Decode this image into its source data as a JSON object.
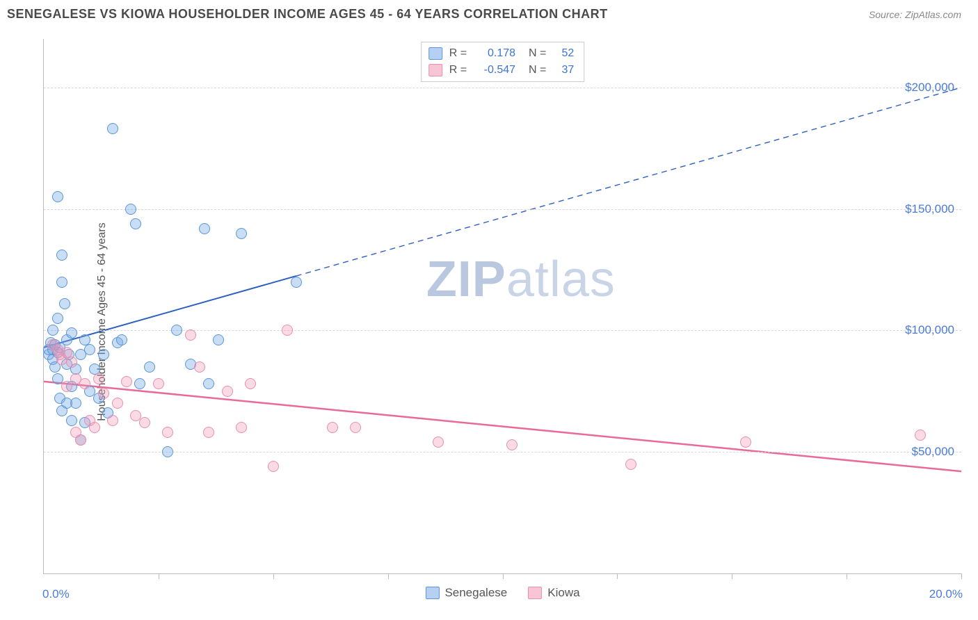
{
  "header": {
    "title": "SENEGALESE VS KIOWA HOUSEHOLDER INCOME AGES 45 - 64 YEARS CORRELATION CHART",
    "source": "Source: ZipAtlas.com"
  },
  "watermark": {
    "bold": "ZIP",
    "light": "atlas"
  },
  "chart": {
    "type": "scatter",
    "y_axis_label": "Householder Income Ages 45 - 64 years",
    "xlim": [
      0,
      20
    ],
    "ylim": [
      0,
      220000
    ],
    "x_ticks": [
      0,
      2.5,
      5,
      7.5,
      10,
      12.5,
      15,
      17.5,
      20
    ],
    "x_tick_labels_shown": {
      "left": "0.0%",
      "right": "20.0%"
    },
    "y_gridlines": [
      50000,
      100000,
      150000,
      200000
    ],
    "y_tick_labels": [
      "$50,000",
      "$100,000",
      "$150,000",
      "$200,000"
    ],
    "series": [
      {
        "name": "Senegalese",
        "class": "s1",
        "color_fill": "rgba(120,170,230,0.4)",
        "color_stroke": "#5a96d8",
        "r_value": "0.178",
        "n_value": "52",
        "trend": {
          "x1": 0,
          "y1": 93000,
          "x2": 20,
          "y2": 200000,
          "solid_until_x": 5.5,
          "color": "#2c5fc0",
          "width": 2
        },
        "points": [
          [
            0.1,
            90000
          ],
          [
            0.1,
            92000
          ],
          [
            0.15,
            95000
          ],
          [
            0.2,
            88000
          ],
          [
            0.2,
            100000
          ],
          [
            0.25,
            85000
          ],
          [
            0.3,
            105000
          ],
          [
            0.3,
            80000
          ],
          [
            0.3,
            155000
          ],
          [
            0.35,
            72000
          ],
          [
            0.4,
            131000
          ],
          [
            0.4,
            120000
          ],
          [
            0.45,
            111000
          ],
          [
            0.5,
            96000
          ],
          [
            0.5,
            86000
          ],
          [
            0.55,
            90000
          ],
          [
            0.6,
            99000
          ],
          [
            0.6,
            77000
          ],
          [
            0.7,
            84000
          ],
          [
            0.7,
            70000
          ],
          [
            0.8,
            55000
          ],
          [
            0.8,
            90000
          ],
          [
            0.9,
            96000
          ],
          [
            0.9,
            62000
          ],
          [
            1.0,
            75000
          ],
          [
            1.0,
            92000
          ],
          [
            1.1,
            84000
          ],
          [
            1.2,
            72000
          ],
          [
            1.3,
            90000
          ],
          [
            1.4,
            66000
          ],
          [
            1.5,
            183000
          ],
          [
            1.6,
            95000
          ],
          [
            1.7,
            96000
          ],
          [
            1.9,
            150000
          ],
          [
            2.0,
            144000
          ],
          [
            2.1,
            78000
          ],
          [
            2.3,
            85000
          ],
          [
            2.7,
            50000
          ],
          [
            2.9,
            100000
          ],
          [
            3.2,
            86000
          ],
          [
            3.5,
            142000
          ],
          [
            3.6,
            78000
          ],
          [
            3.8,
            96000
          ],
          [
            4.3,
            140000
          ],
          [
            5.5,
            120000
          ],
          [
            0.4,
            67000
          ],
          [
            0.5,
            70000
          ],
          [
            0.6,
            63000
          ],
          [
            0.2,
            92000
          ],
          [
            0.25,
            94000
          ],
          [
            0.3,
            91000
          ],
          [
            0.35,
            93000
          ]
        ]
      },
      {
        "name": "Kiowa",
        "class": "s2",
        "color_fill": "rgba(240,150,180,0.35)",
        "color_stroke": "#e78fae",
        "r_value": "-0.547",
        "n_value": "37",
        "trend": {
          "x1": 0,
          "y1": 79000,
          "x2": 20,
          "y2": 42000,
          "solid_until_x": 20,
          "color": "#e86a99",
          "width": 2.5
        },
        "points": [
          [
            0.2,
            94000
          ],
          [
            0.3,
            92000
          ],
          [
            0.35,
            90000
          ],
          [
            0.4,
            88000
          ],
          [
            0.5,
            91000
          ],
          [
            0.5,
            77000
          ],
          [
            0.6,
            87000
          ],
          [
            0.7,
            80000
          ],
          [
            0.7,
            58000
          ],
          [
            0.8,
            55000
          ],
          [
            0.9,
            78000
          ],
          [
            1.0,
            63000
          ],
          [
            1.2,
            80000
          ],
          [
            1.3,
            74000
          ],
          [
            1.5,
            63000
          ],
          [
            1.6,
            70000
          ],
          [
            1.8,
            79000
          ],
          [
            2.0,
            65000
          ],
          [
            2.2,
            62000
          ],
          [
            2.5,
            78000
          ],
          [
            2.7,
            58000
          ],
          [
            3.2,
            98000
          ],
          [
            3.4,
            85000
          ],
          [
            3.6,
            58000
          ],
          [
            4.0,
            75000
          ],
          [
            4.3,
            60000
          ],
          [
            4.5,
            78000
          ],
          [
            5.0,
            44000
          ],
          [
            5.3,
            100000
          ],
          [
            6.3,
            60000
          ],
          [
            6.8,
            60000
          ],
          [
            8.6,
            54000
          ],
          [
            10.2,
            53000
          ],
          [
            12.8,
            45000
          ],
          [
            15.3,
            54000
          ],
          [
            19.1,
            57000
          ],
          [
            1.1,
            60000
          ]
        ]
      }
    ],
    "legend_bottom": [
      {
        "label": "Senegalese",
        "class": "s1"
      },
      {
        "label": "Kiowa",
        "class": "s2"
      }
    ],
    "colors": {
      "axis_text": "#4b7bd6",
      "grid": "#d8d8d8",
      "axis_line": "#bbbbbb"
    }
  }
}
